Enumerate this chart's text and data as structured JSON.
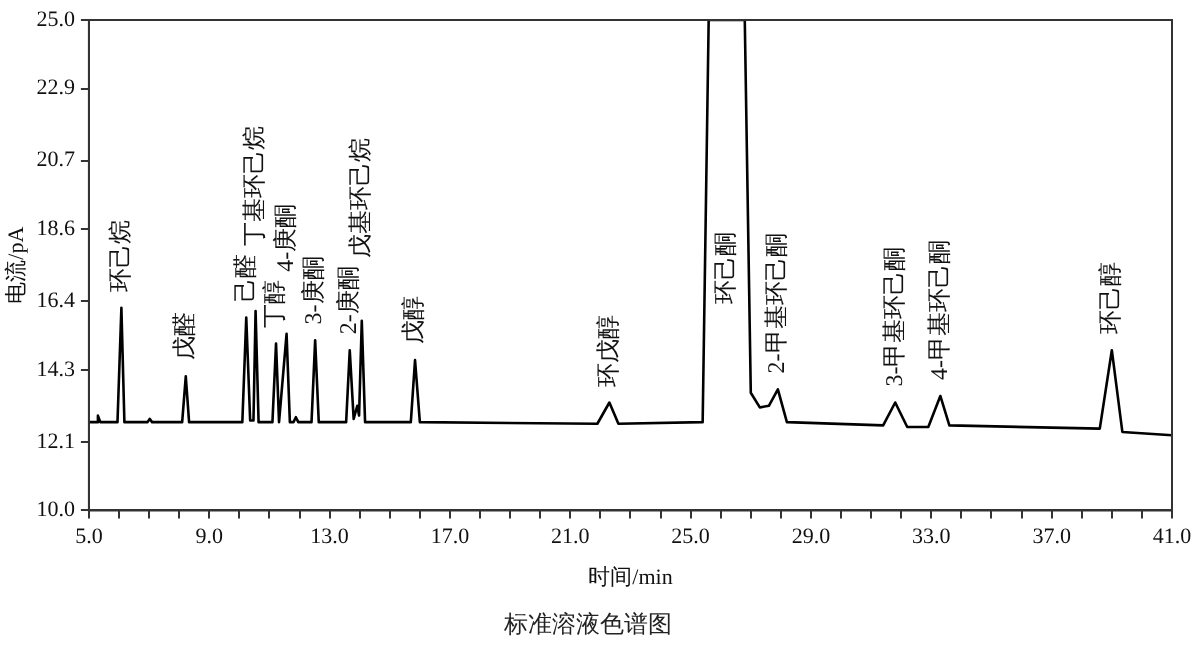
{
  "chart_data": {
    "type": "line",
    "title": "标准溶液色谱图",
    "xlabel": "时间/min",
    "ylabel": "电流/pA",
    "xlim": [
      5.0,
      41.0
    ],
    "xticks": [
      {
        "value": 5,
        "label": "5.0"
      },
      {
        "value": 6,
        "label": null
      },
      {
        "value": 7,
        "label": null
      },
      {
        "value": 8,
        "label": null
      },
      {
        "value": 9,
        "label": "9.0"
      },
      {
        "value": 10,
        "label": null
      },
      {
        "value": 11,
        "label": null
      },
      {
        "value": 12,
        "label": null
      },
      {
        "value": 13,
        "label": "13.0"
      },
      {
        "value": 14,
        "label": null
      },
      {
        "value": 15,
        "label": null
      },
      {
        "value": 16,
        "label": null
      },
      {
        "value": 17,
        "label": "17.0"
      },
      {
        "value": 18,
        "label": null
      },
      {
        "value": 19,
        "label": null
      },
      {
        "value": 20,
        "label": null
      },
      {
        "value": 21,
        "label": "21.0"
      },
      {
        "value": 22,
        "label": null
      },
      {
        "value": 23,
        "label": null
      },
      {
        "value": 24,
        "label": null
      },
      {
        "value": 25,
        "label": "25.0"
      },
      {
        "value": 26,
        "label": null
      },
      {
        "value": 27,
        "label": null
      },
      {
        "value": 28,
        "label": null
      },
      {
        "value": 29,
        "label": "29.0"
      },
      {
        "value": 30,
        "label": null
      },
      {
        "value": 31,
        "label": null
      },
      {
        "value": 32,
        "label": null
      },
      {
        "value": 33,
        "label": "33.0"
      },
      {
        "value": 34,
        "label": null
      },
      {
        "value": 35,
        "label": null
      },
      {
        "value": 36,
        "label": null
      },
      {
        "value": 37,
        "label": "37.0"
      },
      {
        "value": 38,
        "label": null
      },
      {
        "value": 39,
        "label": null
      },
      {
        "value": 40,
        "label": null
      },
      {
        "value": 41,
        "label": "41.0"
      }
    ],
    "ylim": [
      10.0,
      25.0
    ],
    "yticks": [
      {
        "value": 10,
        "label": "10.0"
      },
      12.1,
      14.3,
      16.4,
      18.6,
      20.7,
      22.9,
      {
        "value": 25,
        "label": "25.0"
      }
    ],
    "grid": false,
    "legend": false,
    "series": [
      {
        "color": "#000000",
        "x": [
          5.0,
          5.25,
          5.3,
          5.38,
          5.95,
          6.08,
          6.18,
          6.95,
          7.02,
          7.1,
          8.1,
          8.22,
          8.33,
          10.1,
          10.23,
          10.36,
          10.47,
          10.54,
          10.64,
          11.1,
          11.22,
          11.32,
          11.57,
          11.68,
          11.8,
          11.88,
          11.96,
          12.4,
          12.52,
          12.64,
          13.55,
          13.67,
          13.8,
          13.92,
          13.98,
          14.07,
          14.18,
          15.7,
          15.84,
          16.0,
          21.9,
          22.3,
          22.6,
          25.4,
          25.6,
          26.8,
          27.0,
          27.3,
          27.6,
          27.9,
          28.2,
          31.4,
          31.8,
          32.2,
          32.9,
          33.3,
          33.6,
          38.6,
          39.0,
          39.35,
          41.0
        ],
        "values": [
          12.7,
          12.7,
          12.9,
          12.7,
          12.7,
          16.2,
          12.7,
          12.7,
          12.8,
          12.7,
          12.7,
          14.1,
          12.7,
          12.7,
          15.9,
          12.75,
          12.75,
          16.1,
          12.7,
          12.7,
          15.1,
          12.7,
          15.4,
          12.7,
          12.7,
          12.85,
          12.7,
          12.7,
          15.2,
          12.7,
          12.7,
          14.9,
          12.8,
          13.2,
          12.9,
          15.8,
          12.7,
          12.7,
          14.6,
          12.7,
          12.65,
          13.3,
          12.65,
          12.7,
          25.0,
          25.0,
          13.6,
          13.15,
          13.2,
          13.7,
          12.7,
          12.6,
          13.3,
          12.55,
          12.55,
          13.5,
          12.6,
          12.5,
          14.9,
          12.4,
          12.3
        ]
      }
    ],
    "annotations": [
      {
        "text": "环己烷",
        "x": 6.08,
        "y": 16.2
      },
      {
        "text": "戊醛",
        "x": 8.22,
        "y": 14.1
      },
      {
        "text": "己醛",
        "x": 10.23,
        "y": 15.9
      },
      {
        "text": "丁基环己烷",
        "x": 10.54,
        "y": 16.1
      },
      {
        "text": "丁醇",
        "x": 11.22,
        "y": 15.1
      },
      {
        "text": "4-庚酮",
        "x": 11.57,
        "y": 15.4
      },
      {
        "text": "3-庚酮",
        "x": 12.52,
        "y": 15.2
      },
      {
        "text": "2-庚酮",
        "x": 13.67,
        "y": 14.9
      },
      {
        "text": "戊基环己烷",
        "x": 14.07,
        "y": 15.8
      },
      {
        "text": "戊醇",
        "x": 15.84,
        "y": 14.6
      },
      {
        "text": "环戊醇",
        "x": 22.3,
        "y": 13.3
      },
      "环己酮",
      {
        "text": "2-甲基环己酮",
        "x": 27.9,
        "y": 13.7
      },
      {
        "text": "3-甲基环己酮",
        "x": 31.8,
        "y": 13.3
      },
      {
        "text": "4-甲基环己酮",
        "x": 33.3,
        "y": 13.5
      },
      {
        "text": "环己醇",
        "x": 39.0,
        "y": 14.9
      }
    ]
  }
}
